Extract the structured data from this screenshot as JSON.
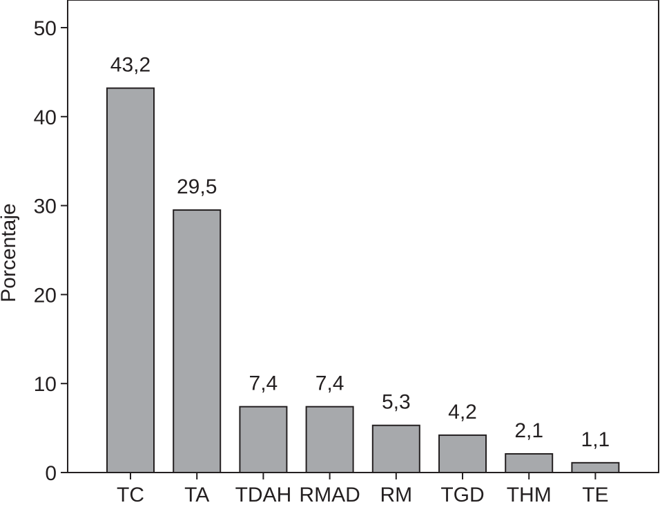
{
  "chart_data": {
    "type": "bar",
    "title": "",
    "xlabel": "",
    "ylabel": "Porcentaje",
    "ylim": [
      0,
      52
    ],
    "yticks": [
      0,
      10,
      20,
      30,
      40,
      50
    ],
    "categories": [
      "TC",
      "TA",
      "TDAH",
      "RMAD",
      "RM",
      "TGD",
      "THM",
      "TE"
    ],
    "values": [
      43.2,
      29.5,
      7.4,
      7.4,
      5.3,
      4.2,
      2.1,
      1.1
    ],
    "data_labels": [
      "43,2",
      "29,5",
      "7,4",
      "7,4",
      "5,3",
      "4,2",
      "2,1",
      "1,1"
    ],
    "grid": false,
    "colors": {
      "bar_fill": "#a7a9ac",
      "bar_stroke": "#231f20",
      "axis": "#231f20"
    }
  }
}
